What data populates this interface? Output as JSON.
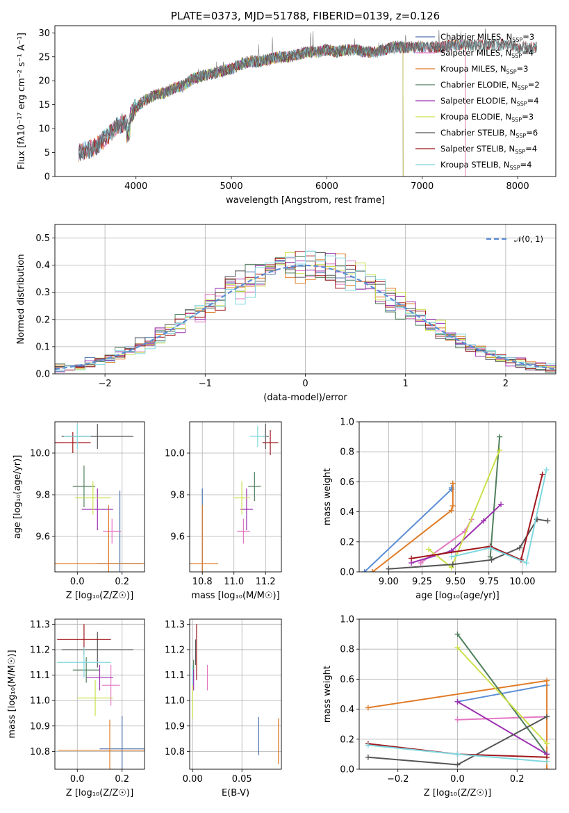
{
  "chart_data": [
    {
      "id": "spectrum",
      "type": "line",
      "title": "PLATE=0373, MJD=51788, FIBERID=0139, z=0.126",
      "xlabel": "wavelength [Angstrom, rest frame]",
      "ylabel": "Flux [fλ10⁻¹⁷ erg cm⁻² s⁻¹ A⁻¹]",
      "xlim": [
        3150,
        8400
      ],
      "ylim": [
        0,
        31.5
      ],
      "xticks": [
        "4000",
        "5000",
        "6000",
        "7000",
        "8000"
      ],
      "yticks": [
        "0",
        "5",
        "10",
        "15",
        "20",
        "25",
        "30"
      ],
      "grid": false,
      "legend_position": "right",
      "data_spectrum": {
        "wavelength": [
          3400,
          3500,
          3600,
          3700,
          3800,
          3900,
          4000,
          4100,
          4200,
          4300,
          4400,
          4500,
          4600,
          4700,
          4800,
          4900,
          5000,
          5100,
          5200,
          5300,
          5400,
          5500,
          5600,
          5700,
          5800,
          5900,
          6000,
          6100,
          6200,
          6300,
          6400,
          6500,
          6600,
          6700,
          6800,
          6900,
          7000,
          7100,
          7200,
          7300,
          7400,
          7500,
          7600,
          7700,
          7800,
          7900,
          8000,
          8100,
          8200
        ],
        "flux": [
          5.0,
          5.5,
          6.5,
          8.5,
          10.5,
          11.5,
          14.5,
          16.0,
          17.0,
          17.5,
          18.5,
          19.0,
          20.5,
          21.0,
          21.5,
          22.0,
          22.5,
          23.5,
          24.0,
          24.0,
          24.5,
          25.0,
          25.0,
          25.5,
          26.0,
          26.0,
          26.5,
          26.0,
          26.5,
          26.5,
          26.0,
          26.0,
          26.5,
          27.0,
          27.0,
          27.0,
          27.0,
          27.0,
          27.0,
          27.5,
          27.5,
          27.5,
          27.5,
          27.5,
          27.5,
          27.5,
          27.0,
          27.0,
          27.0
        ]
      },
      "series": [
        {
          "name": "Chabrier MILES, N",
          "sub": "SSP",
          "suffix": "=3",
          "color": "#4c72b0",
          "xrange": [
            3400,
            7450
          ]
        },
        {
          "name": "Salpeter MILES, N",
          "sub": "SSP",
          "suffix": "=4",
          "color": "#e377c2",
          "xrange": [
            3400,
            7450
          ]
        },
        {
          "name": "Kroupa MILES, N",
          "sub": "SSP",
          "suffix": "=3",
          "color": "#e07b26",
          "xrange": [
            3400,
            7450
          ]
        },
        {
          "name": "Chabrier ELODIE, N",
          "sub": "SSP",
          "suffix": "=2",
          "color": "#4f7f5c",
          "xrange": [
            3900,
            6800
          ]
        },
        {
          "name": "Salpeter ELODIE, N",
          "sub": "SSP",
          "suffix": "=4",
          "color": "#9b30b0",
          "xrange": [
            3900,
            6800
          ]
        },
        {
          "name": "Kroupa ELODIE, N",
          "sub": "SSP",
          "suffix": "=3",
          "color": "#cbe048",
          "xrange": [
            3900,
            6800
          ]
        },
        {
          "name": "Chabrier STELIB, N",
          "sub": "SSP",
          "suffix": "=6",
          "color": "#555555",
          "xrange": [
            3400,
            8200
          ]
        },
        {
          "name": "Salpeter STELIB, N",
          "sub": "SSP",
          "suffix": "=4",
          "color": "#a0171d",
          "xrange": [
            3400,
            8200
          ]
        },
        {
          "name": "Kroupa STELIB, N",
          "sub": "SSP",
          "suffix": "=4",
          "color": "#7fd8e0",
          "xrange": [
            3400,
            8200
          ]
        }
      ]
    },
    {
      "id": "residuals",
      "type": "histogram",
      "title": "",
      "xlabel": "(data-model)/error",
      "ylabel": "Normed distribution",
      "xlim": [
        -2.5,
        2.5
      ],
      "ylim": [
        0,
        0.55
      ],
      "xticks": [
        "−2",
        "−1",
        "0",
        "1",
        "2"
      ],
      "yticks": [
        "0.0",
        "0.1",
        "0.2",
        "0.3",
        "0.4",
        "0.5"
      ],
      "grid": true,
      "legend": "𝒩(0, 1)",
      "legend_position": "top-right",
      "bin_width": 0.1,
      "colors": [
        "#4c72b0",
        "#e377c2",
        "#e07b26",
        "#4f7f5c",
        "#9b30b0",
        "#cbe048",
        "#555555",
        "#a0171d",
        "#7fd8e0"
      ],
      "normal_curve_color": "#5b8ed6"
    },
    {
      "id": "age-vs-Z",
      "type": "errorbar",
      "xlabel": "Z [log₁₀(Z/Z☉)]",
      "ylabel": "age  [log₁₀(age/yr)]",
      "xlim": [
        -0.1,
        0.3
      ],
      "ylim": [
        9.43,
        10.15
      ],
      "xticks": [
        "0.0",
        "0.2"
      ],
      "yticks": [
        "9.6",
        "9.8",
        "10.0"
      ],
      "grid": true,
      "points": [
        {
          "x": 0.19,
          "y": 9.47,
          "xerr": 0.1,
          "yerr": 0.35,
          "color": "#4c72b0"
        },
        {
          "x": 0.155,
          "y": 9.625,
          "xerr": 0.04,
          "yerr": 0.06,
          "color": "#e377c2"
        },
        {
          "x": 0.14,
          "y": 9.47,
          "xerr": 0.24,
          "yerr": 0.28,
          "color": "#e07b26"
        },
        {
          "x": 0.03,
          "y": 9.84,
          "xerr": 0.05,
          "yerr": 0.1,
          "color": "#4f7f5c"
        },
        {
          "x": 0.09,
          "y": 9.73,
          "xerr": 0.07,
          "yerr": 0.1,
          "color": "#9b30b0"
        },
        {
          "x": 0.07,
          "y": 9.785,
          "xerr": 0.08,
          "yerr": 0.08,
          "color": "#cbe048"
        },
        {
          "x": 0.09,
          "y": 10.08,
          "xerr": 0.16,
          "yerr": 0.06,
          "color": "#555555"
        },
        {
          "x": -0.02,
          "y": 10.05,
          "xerr": 0.08,
          "yerr": 0.05,
          "color": "#a0171d"
        },
        {
          "x": 0.0,
          "y": 10.08,
          "xerr": 0.06,
          "yerr": 0.06,
          "color": "#7fd8e0"
        }
      ]
    },
    {
      "id": "age-vs-mass",
      "type": "errorbar",
      "xlabel": "mass [log₁₀(M/M☉)]",
      "ylabel": "",
      "xlim": [
        10.72,
        11.3
      ],
      "ylim": [
        9.43,
        10.15
      ],
      "xticks": [
        "10.8",
        "11.0",
        "11.2"
      ],
      "yticks": [
        "9.6",
        "9.8",
        "10.0"
      ],
      "grid": true,
      "points": [
        {
          "x": 10.8,
          "y": 9.47,
          "xerr": 0.003,
          "yerr": 0.36,
          "color": "#4c72b0"
        },
        {
          "x": 11.06,
          "y": 9.625,
          "xerr": 0.04,
          "yerr": 0.06,
          "color": "#e377c2"
        },
        {
          "x": 10.8,
          "y": 9.47,
          "xerr": 0.1,
          "yerr": 0.28,
          "color": "#e07b26"
        },
        {
          "x": 11.13,
          "y": 9.84,
          "xerr": 0.04,
          "yerr": 0.07,
          "color": "#4f7f5c"
        },
        {
          "x": 11.08,
          "y": 9.73,
          "xerr": 0.04,
          "yerr": 0.1,
          "color": "#9b30b0"
        },
        {
          "x": 11.05,
          "y": 9.785,
          "xerr": 0.05,
          "yerr": 0.08,
          "color": "#cbe048"
        },
        {
          "x": 11.2,
          "y": 10.08,
          "xerr": 0.02,
          "yerr": 0.06,
          "color": "#555555"
        },
        {
          "x": 11.23,
          "y": 10.05,
          "xerr": 0.05,
          "yerr": 0.06,
          "color": "#a0171d"
        },
        {
          "x": 11.15,
          "y": 10.08,
          "xerr": 0.05,
          "yerr": 0.05,
          "color": "#7fd8e0"
        }
      ]
    },
    {
      "id": "weight-vs-age",
      "type": "line",
      "xlabel": "age  [log₁₀(age/yr)]",
      "ylabel": "mass weight",
      "xlim": [
        8.78,
        10.25
      ],
      "ylim": [
        0,
        1.0
      ],
      "xticks": [
        "9.00",
        "9.25",
        "9.50",
        "9.75",
        "10.00"
      ],
      "yticks": [
        "0.0",
        "0.2",
        "0.4",
        "0.6",
        "0.8",
        "1.0"
      ],
      "grid": true,
      "series": [
        {
          "color": "#5b8ed6",
          "x": [
            8.82,
            9.47,
            9.47
          ],
          "y": [
            0.0,
            0.55,
            0.56
          ]
        },
        {
          "color": "#e377c2",
          "x": [
            9.24,
            9.57,
            9.62
          ],
          "y": [
            0.06,
            0.27,
            0.35
          ]
        },
        {
          "color": "#e07b26",
          "x": [
            8.88,
            9.47,
            9.48,
            9.48
          ],
          "y": [
            0.0,
            0.41,
            0.44,
            0.59
          ]
        },
        {
          "color": "#4f7f5c",
          "x": [
            9.76,
            9.83
          ],
          "y": [
            0.1,
            0.9
          ]
        },
        {
          "color": "#9b30b0",
          "x": [
            9.17,
            9.47,
            9.71,
            9.84
          ],
          "y": [
            0.06,
            0.14,
            0.34,
            0.45
          ]
        },
        {
          "color": "#cbe048",
          "x": [
            9.3,
            9.47,
            9.83
          ],
          "y": [
            0.15,
            0.03,
            0.81
          ]
        },
        {
          "color": "#555555",
          "x": [
            9.0,
            9.48,
            9.77,
            9.98,
            10.11,
            10.19
          ],
          "y": [
            0.02,
            0.05,
            0.08,
            0.16,
            0.35,
            0.34
          ]
        },
        {
          "color": "#a0171d",
          "x": [
            9.17,
            9.76,
            9.99,
            10.15
          ],
          "y": [
            0.09,
            0.17,
            0.08,
            0.65
          ]
        },
        {
          "color": "#7fd8e0",
          "x": [
            9.47,
            9.76,
            10.03,
            10.18
          ],
          "y": [
            0.1,
            0.16,
            0.06,
            0.68
          ]
        }
      ]
    },
    {
      "id": "mass-vs-Z",
      "type": "errorbar",
      "xlabel": "Z [log₁₀(Z/Z☉)]",
      "ylabel": "mass [log₁₀(M/M☉)]",
      "xlim": [
        -0.1,
        0.3
      ],
      "ylim": [
        10.73,
        11.32
      ],
      "xticks": [
        "0.0",
        "0.2"
      ],
      "yticks": [
        "10.8",
        "10.9",
        "11.0",
        "11.1",
        "11.2",
        "11.3"
      ],
      "grid": true,
      "points": [
        {
          "x": 0.2,
          "y": 10.81,
          "xerr": 0.1,
          "yerr": 0.13,
          "color": "#4c72b0"
        },
        {
          "x": 0.15,
          "y": 11.06,
          "xerr": 0.04,
          "yerr": 0.08,
          "color": "#e377c2"
        },
        {
          "x": 0.145,
          "y": 10.805,
          "xerr": 0.23,
          "yerr": 0.12,
          "color": "#e07b26"
        },
        {
          "x": 0.04,
          "y": 11.12,
          "xerr": 0.06,
          "yerr": 0.05,
          "color": "#4f7f5c"
        },
        {
          "x": 0.1,
          "y": 11.09,
          "xerr": 0.06,
          "yerr": 0.05,
          "color": "#9b30b0"
        },
        {
          "x": 0.08,
          "y": 11.01,
          "xerr": 0.08,
          "yerr": 0.07,
          "color": "#cbe048"
        },
        {
          "x": 0.09,
          "y": 11.2,
          "xerr": 0.16,
          "yerr": 0.07,
          "color": "#555555"
        },
        {
          "x": 0.03,
          "y": 11.24,
          "xerr": 0.12,
          "yerr": 0.06,
          "color": "#a0171d"
        },
        {
          "x": 0.03,
          "y": 11.15,
          "xerr": 0.12,
          "yerr": 0.06,
          "color": "#7fd8e0"
        }
      ]
    },
    {
      "id": "mass-vs-EBV",
      "type": "errorbar",
      "xlabel": "E(B-V)",
      "ylabel": "",
      "xlim": [
        -0.003,
        0.09
      ],
      "ylim": [
        10.73,
        11.32
      ],
      "xticks": [
        "0.00",
        "0.05"
      ],
      "yticks": [
        "10.8",
        "10.9",
        "11.0",
        "11.1",
        "11.2",
        "11.3"
      ],
      "grid": true,
      "points": [
        {
          "x": 0.067,
          "y": 10.86,
          "xerr": 0.0,
          "yerr": 0.075,
          "color": "#4c72b0"
        },
        {
          "x": 0.015,
          "y": 11.09,
          "xerr": 0.0,
          "yerr": 0.05,
          "color": "#e377c2"
        },
        {
          "x": 0.087,
          "y": 10.84,
          "xerr": 0.0,
          "yerr": 0.09,
          "color": "#e07b26"
        },
        {
          "x": 0.001,
          "y": 11.12,
          "xerr": 0.0,
          "yerr": 0.04,
          "color": "#4f7f5c"
        },
        {
          "x": 0.001,
          "y": 11.08,
          "xerr": 0.0,
          "yerr": 0.04,
          "color": "#9b30b0"
        },
        {
          "x": 0.0,
          "y": 11.0,
          "xerr": 0.0,
          "yerr": 0.07,
          "color": "#cbe048"
        },
        {
          "x": 0.003,
          "y": 11.19,
          "xerr": 0.0,
          "yerr": 0.05,
          "color": "#555555"
        },
        {
          "x": 0.004,
          "y": 11.19,
          "xerr": 0.0,
          "yerr": 0.11,
          "color": "#a0171d"
        },
        {
          "x": 0.0,
          "y": 11.1,
          "xerr": 0.0,
          "yerr": 0.04,
          "color": "#7fd8e0"
        }
      ]
    },
    {
      "id": "weight-vs-Z",
      "type": "line",
      "xlabel": "Z [log₁₀(Z/Z☉)]",
      "ylabel": "mass weight",
      "xlim": [
        -0.33,
        0.33
      ],
      "ylim": [
        0,
        1.0
      ],
      "xticks": [
        "−0.2",
        "0.0",
        "0.2"
      ],
      "yticks": [
        "0.0",
        "0.2",
        "0.4",
        "0.6",
        "0.8",
        "1.0"
      ],
      "grid": true,
      "series": [
        {
          "color": "#5b8ed6",
          "x": [
            0.0,
            0.3
          ],
          "y": [
            0.45,
            0.56
          ]
        },
        {
          "color": "#e377c2",
          "x": [
            0.0,
            0.3
          ],
          "y": [
            0.33,
            0.35
          ]
        },
        {
          "color": "#e07b26",
          "x": [
            -0.3,
            0.3,
            0.3
          ],
          "y": [
            0.41,
            0.59,
            0.0
          ]
        },
        {
          "color": "#4f7f5c",
          "x": [
            0.0,
            0.3
          ],
          "y": [
            0.9,
            0.1
          ]
        },
        {
          "color": "#9b30b0",
          "x": [
            0.0,
            0.3
          ],
          "y": [
            0.45,
            0.1
          ]
        },
        {
          "color": "#cbe048",
          "x": [
            0.0,
            0.3
          ],
          "y": [
            0.81,
            0.17
          ]
        },
        {
          "color": "#555555",
          "x": [
            -0.3,
            0.0,
            0.3
          ],
          "y": [
            0.08,
            0.03,
            0.35
          ]
        },
        {
          "color": "#a0171d",
          "x": [
            -0.3,
            0.0,
            0.3
          ],
          "y": [
            0.17,
            0.1,
            0.08
          ]
        },
        {
          "color": "#7fd8e0",
          "x": [
            -0.3,
            0.0,
            0.3
          ],
          "y": [
            0.16,
            0.1,
            0.05
          ]
        }
      ]
    }
  ]
}
